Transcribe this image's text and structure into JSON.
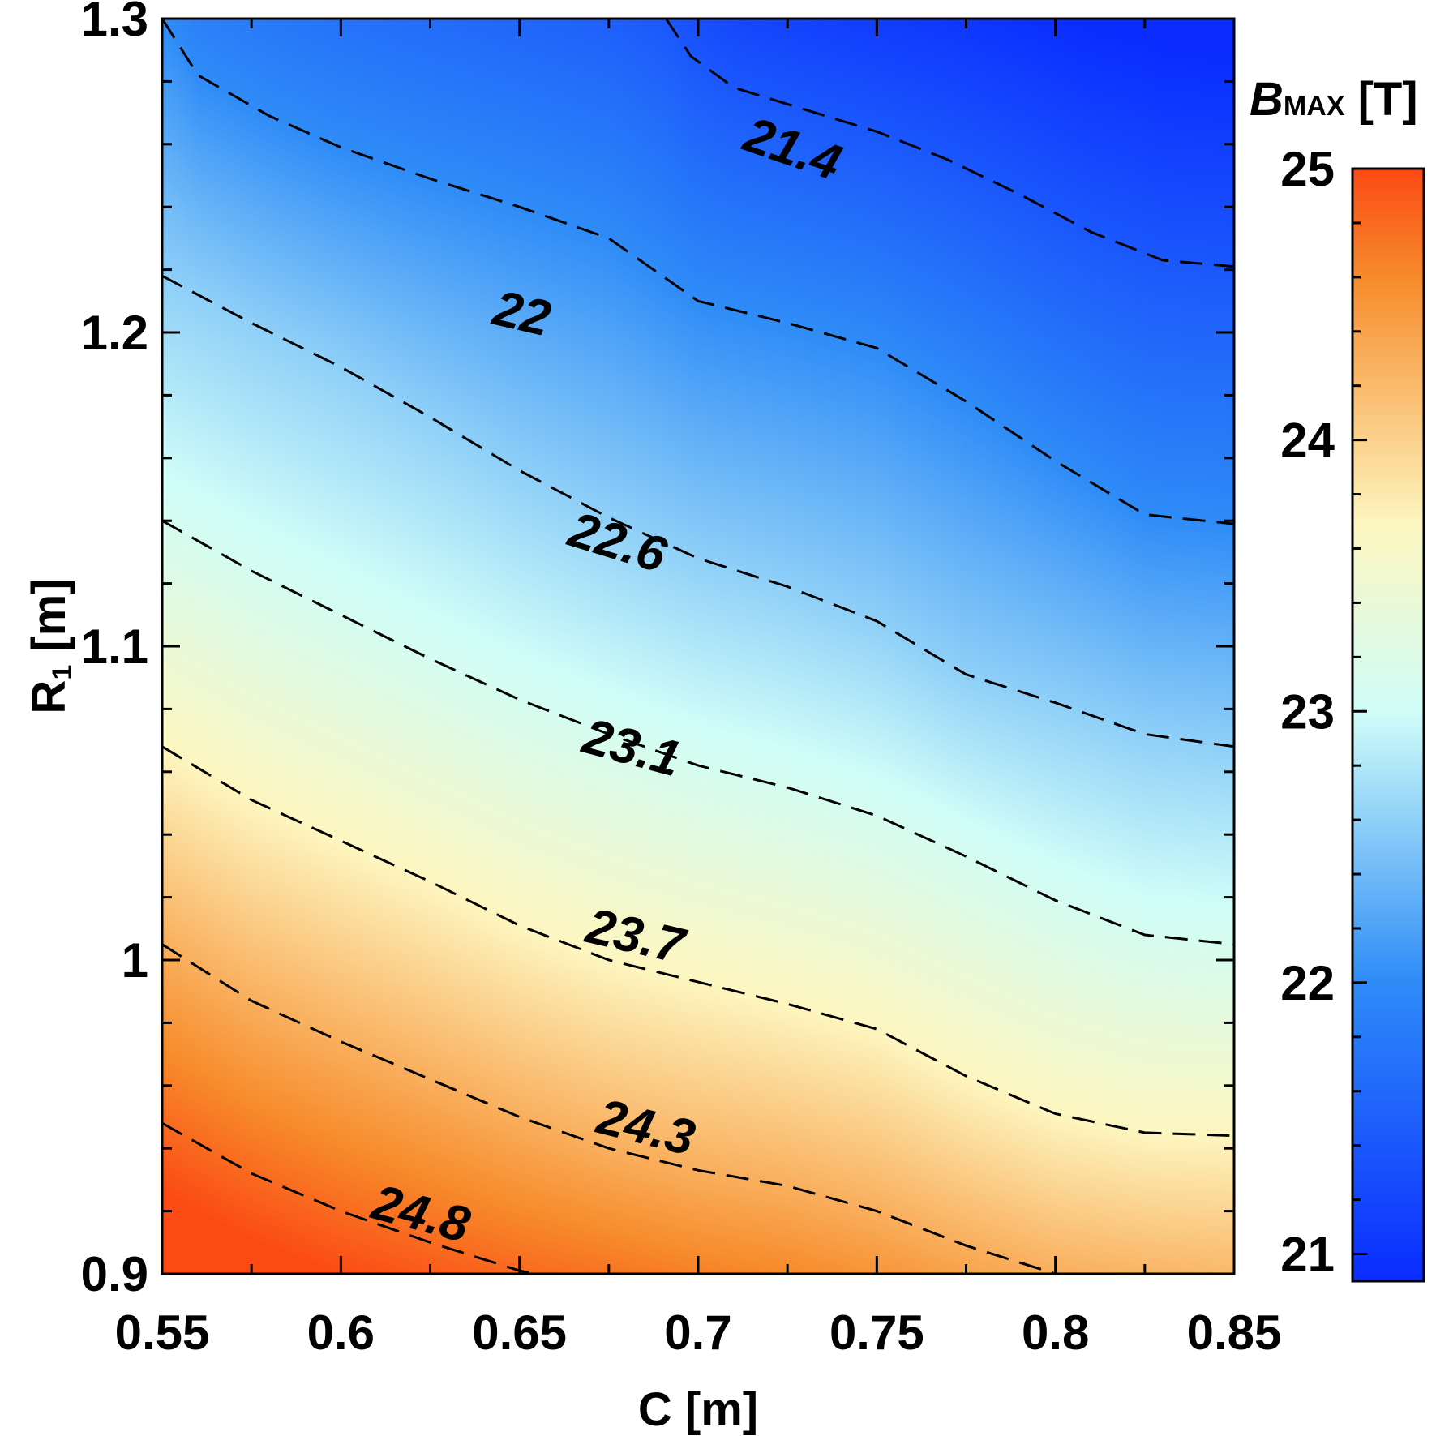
{
  "chart_data": {
    "type": "heatmap",
    "subtype": "contour",
    "x": {
      "label": "C [m]",
      "range": [
        0.55,
        0.85
      ],
      "ticks": [
        0.55,
        0.6,
        0.65,
        0.7,
        0.75,
        0.8,
        0.85
      ],
      "tick_labels": [
        "0.55",
        "0.6",
        "0.65",
        "0.7",
        "0.75",
        "0.8",
        "0.85"
      ]
    },
    "y": {
      "label_main": "R",
      "label_sub": "1",
      "label_unit": " [m]",
      "range": [
        0.9,
        1.3
      ],
      "ticks": [
        0.9,
        1.0,
        1.1,
        1.2,
        1.3
      ],
      "tick_labels": [
        "0.9",
        "1",
        "1.1",
        "1.2",
        "1.3"
      ]
    },
    "colorbar": {
      "label_main": "B",
      "label_sub": "MAX",
      "label_unit": " [T]",
      "range": [
        20.9,
        25.0
      ],
      "ticks": [
        21,
        22,
        23,
        24,
        25
      ],
      "tick_labels": [
        "21",
        "22",
        "23",
        "24",
        "25"
      ],
      "colors": [
        "#0a2cff",
        "#2f8cf7",
        "#cffdf8",
        "#fdf6c0",
        "#f78c2c",
        "#fb4a14"
      ]
    },
    "contours": [
      {
        "level": 21.4,
        "label": "21.4",
        "points": [
          [
            0.691,
            1.3
          ],
          [
            0.698,
            1.288
          ],
          [
            0.71,
            1.278
          ],
          [
            0.73,
            1.271
          ],
          [
            0.75,
            1.264
          ],
          [
            0.77,
            1.255
          ],
          [
            0.79,
            1.244
          ],
          [
            0.81,
            1.232
          ],
          [
            0.83,
            1.223
          ],
          [
            0.85,
            1.221
          ]
        ]
      },
      {
        "level": 22.0,
        "label": "22",
        "points": [
          [
            0.55,
            1.3
          ],
          [
            0.56,
            1.282
          ],
          [
            0.58,
            1.269
          ],
          [
            0.6,
            1.259
          ],
          [
            0.625,
            1.249
          ],
          [
            0.65,
            1.24
          ],
          [
            0.675,
            1.23
          ],
          [
            0.7,
            1.21
          ],
          [
            0.725,
            1.203
          ],
          [
            0.75,
            1.195
          ],
          [
            0.775,
            1.178
          ],
          [
            0.8,
            1.159
          ],
          [
            0.825,
            1.142
          ],
          [
            0.85,
            1.139
          ]
        ]
      },
      {
        "level": 22.6,
        "label": "22.6",
        "points": [
          [
            0.55,
            1.218
          ],
          [
            0.575,
            1.203
          ],
          [
            0.6,
            1.189
          ],
          [
            0.625,
            1.173
          ],
          [
            0.65,
            1.156
          ],
          [
            0.675,
            1.141
          ],
          [
            0.7,
            1.128
          ],
          [
            0.725,
            1.119
          ],
          [
            0.75,
            1.108
          ],
          [
            0.775,
            1.091
          ],
          [
            0.8,
            1.082
          ],
          [
            0.825,
            1.072
          ],
          [
            0.85,
            1.068
          ]
        ]
      },
      {
        "level": 23.1,
        "label": "23.1",
        "points": [
          [
            0.55,
            1.14
          ],
          [
            0.575,
            1.124
          ],
          [
            0.6,
            1.11
          ],
          [
            0.625,
            1.096
          ],
          [
            0.65,
            1.083
          ],
          [
            0.675,
            1.072
          ],
          [
            0.7,
            1.062
          ],
          [
            0.725,
            1.055
          ],
          [
            0.75,
            1.046
          ],
          [
            0.775,
            1.033
          ],
          [
            0.8,
            1.019
          ],
          [
            0.825,
            1.008
          ],
          [
            0.85,
            1.005
          ]
        ]
      },
      {
        "level": 23.7,
        "label": "23.7",
        "points": [
          [
            0.55,
            1.068
          ],
          [
            0.575,
            1.051
          ],
          [
            0.6,
            1.038
          ],
          [
            0.625,
            1.025
          ],
          [
            0.65,
            1.011
          ],
          [
            0.675,
            1.0
          ],
          [
            0.7,
            0.993
          ],
          [
            0.725,
            0.986
          ],
          [
            0.75,
            0.978
          ],
          [
            0.775,
            0.963
          ],
          [
            0.8,
            0.951
          ],
          [
            0.825,
            0.945
          ],
          [
            0.85,
            0.944
          ]
        ]
      },
      {
        "level": 24.3,
        "label": "24.3",
        "points": [
          [
            0.55,
            1.005
          ],
          [
            0.575,
            0.987
          ],
          [
            0.6,
            0.974
          ],
          [
            0.625,
            0.962
          ],
          [
            0.65,
            0.95
          ],
          [
            0.675,
            0.94
          ],
          [
            0.7,
            0.933
          ],
          [
            0.725,
            0.928
          ],
          [
            0.75,
            0.92
          ],
          [
            0.775,
            0.909
          ],
          [
            0.8,
            0.9
          ],
          [
            0.825,
            0.896
          ],
          [
            0.85,
            0.893
          ]
        ]
      },
      {
        "level": 24.8,
        "label": "24.8",
        "points": [
          [
            0.55,
            0.948
          ],
          [
            0.575,
            0.932
          ],
          [
            0.6,
            0.92
          ],
          [
            0.625,
            0.91
          ],
          [
            0.65,
            0.901
          ],
          [
            0.675,
            0.895
          ],
          [
            0.7,
            0.888
          ]
        ]
      }
    ],
    "contour_labels": [
      {
        "text": "21.4",
        "x": 0.712,
        "y": 1.2585,
        "angle": 19
      },
      {
        "text": "22",
        "x": 0.642,
        "y": 1.2028,
        "angle": 13
      },
      {
        "text": "22.6",
        "x": 0.663,
        "y": 1.1325,
        "angle": 17
      },
      {
        "text": "23.1",
        "x": 0.667,
        "y": 1.0665,
        "angle": 15
      },
      {
        "text": "23.7",
        "x": 0.668,
        "y": 1.0059,
        "angle": 13
      },
      {
        "text": "24.3",
        "x": 0.671,
        "y": 0.9452,
        "angle": 14
      },
      {
        "text": "24.8",
        "x": 0.608,
        "y": 0.918,
        "angle": 15
      }
    ],
    "grid": false,
    "legend": "colorbar-right"
  }
}
